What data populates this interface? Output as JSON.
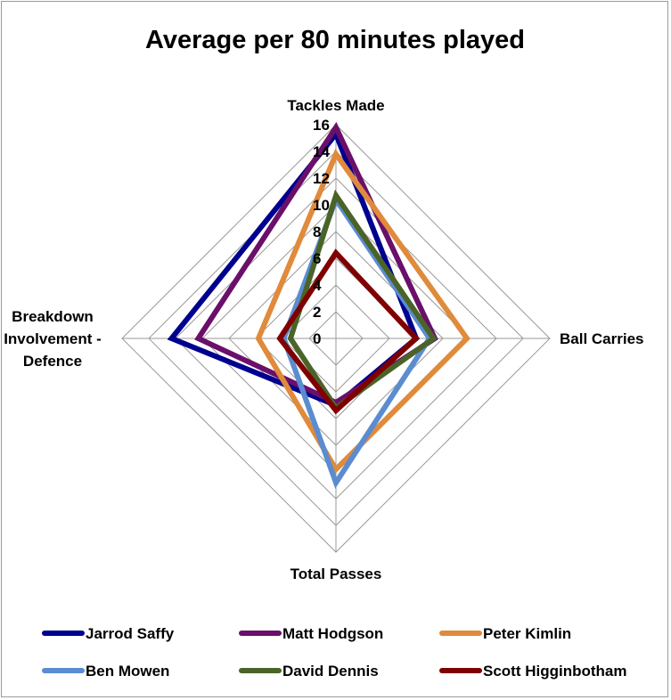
{
  "chart_data": {
    "type": "radar",
    "title": "Average per 80 minutes played",
    "axes": [
      "Tackles Made",
      "Ball Carries",
      "Total Passes",
      "Breakdown Involvement - Defence"
    ],
    "axis_label_lines": [
      [
        "Tackles Made"
      ],
      [
        "Ball Carries"
      ],
      [
        "Total Passes"
      ],
      [
        "Breakdown",
        "Involvement -",
        "Defence"
      ]
    ],
    "r_ticks": [
      0,
      2,
      4,
      6,
      8,
      10,
      12,
      14,
      16
    ],
    "r_range": [
      0,
      16
    ],
    "grid": true,
    "legend_position": "bottom",
    "series": [
      {
        "name": "Jarrod Saffy",
        "color": "#000090",
        "values": [
          15.3,
          6.0,
          5.0,
          12.3
        ]
      },
      {
        "name": "Matt Hodgson",
        "color": "#6a0f6a",
        "values": [
          15.8,
          7.4,
          4.8,
          10.3
        ]
      },
      {
        "name": "Peter Kimlin",
        "color": "#e08a3c",
        "values": [
          13.8,
          9.8,
          9.8,
          5.8
        ]
      },
      {
        "name": "Ben Mowen",
        "color": "#5b8cd0",
        "values": [
          10.4,
          7.0,
          10.8,
          3.9
        ]
      },
      {
        "name": "David Dennis",
        "color": "#4a6428",
        "values": [
          10.7,
          7.3,
          5.2,
          3.4
        ]
      },
      {
        "name": "Scott Higginbotham",
        "color": "#800000",
        "values": [
          6.4,
          6.0,
          5.4,
          4.2
        ]
      }
    ]
  }
}
